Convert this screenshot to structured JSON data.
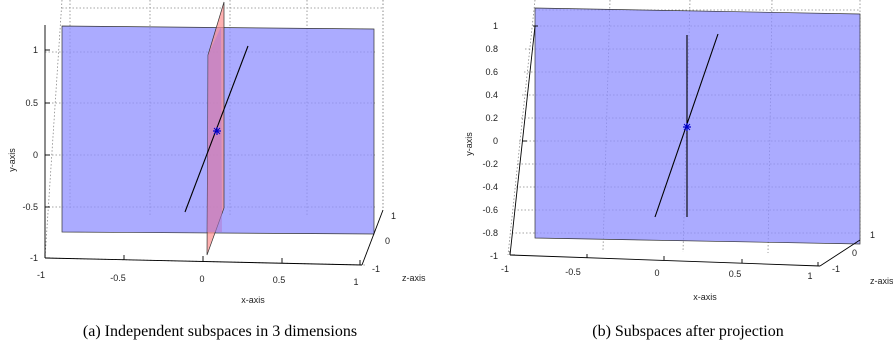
{
  "panels": [
    {
      "id": "a",
      "caption": "(a)  Independent subspaces in 3 dimensions",
      "xlabel": "x-axis",
      "ylabel": "y-axis",
      "zlabel": "z-axis",
      "x_ticks": [
        "-1",
        "-0.5",
        "0",
        "0.5",
        "1"
      ],
      "y_ticks": [
        "1",
        "0.5",
        "0",
        "-0.5",
        "-1"
      ],
      "z_ticks": [
        "1",
        "0",
        "-1"
      ],
      "colors": {
        "horizontal_plane": "#8f8fff",
        "vertical_plane": "#ff8f8f",
        "line": "#000000",
        "point": "#0000cc"
      }
    },
    {
      "id": "b",
      "caption": "(b)  Subspaces after projection",
      "xlabel": "x-axis",
      "ylabel": "y-axis",
      "zlabel": "z-axis",
      "x_ticks": [
        "-1",
        "-0.5",
        "0",
        "0.5",
        "1"
      ],
      "y_ticks": [
        "1",
        "0.8",
        "0.6",
        "0.4",
        "0.2",
        "0",
        "-0.2",
        "-0.4",
        "-0.6",
        "-0.8",
        "-1"
      ],
      "z_ticks": [
        "1",
        "0",
        "-1"
      ],
      "colors": {
        "plane": "#8f8fff",
        "line": "#000000",
        "point": "#0000cc"
      }
    }
  ]
}
